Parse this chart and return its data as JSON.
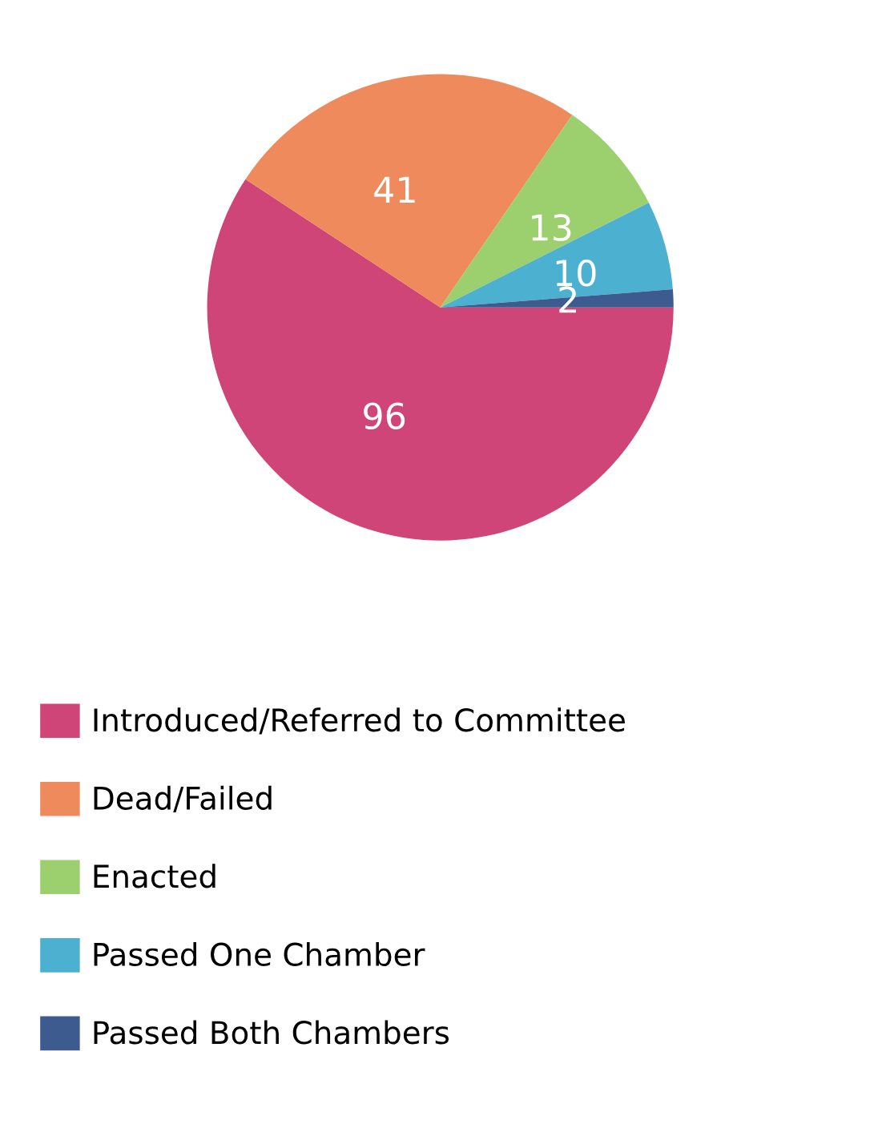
{
  "chart_data": {
    "type": "pie",
    "categories": [
      "Introduced/Referred to Committee",
      "Dead/Failed",
      "Enacted",
      "Passed One Chamber",
      "Passed Both Chambers"
    ],
    "values": [
      96,
      41,
      13,
      10,
      2
    ],
    "colors": [
      "#cf4578",
      "#ef8a5c",
      "#9ccf6e",
      "#4cb1d1",
      "#3e5b8f"
    ],
    "data_labels": true,
    "legend": "bottom"
  }
}
